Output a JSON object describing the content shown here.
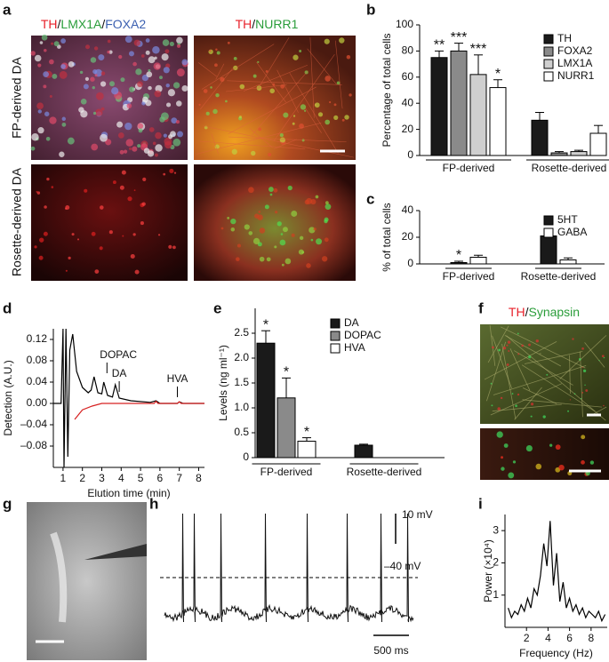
{
  "panel_labels": [
    "a",
    "b",
    "c",
    "d",
    "e",
    "f",
    "g",
    "h",
    "i"
  ],
  "panel_a": {
    "stain_1": [
      "TH",
      "/",
      "LMX1A",
      "/",
      "FOXA2"
    ],
    "stain_2": [
      "TH",
      "/",
      "NURR1"
    ],
    "rows": [
      "FP-derived DA",
      "Rosette-derived DA"
    ]
  },
  "panel_f": {
    "stain": [
      "TH",
      "/",
      "Synapsin"
    ]
  },
  "panel_h": {
    "scale_voltage": "10 mV",
    "threshold": "–40 mV",
    "scale_time": "500 ms"
  },
  "chart_data": [
    {
      "type": "bar",
      "y_label": "Percentage of total cells",
      "categories": [
        "FP-derived",
        "Rosette-derived"
      ],
      "ylim": [
        0,
        100
      ],
      "yticks": [
        0,
        20,
        40,
        60,
        80,
        100
      ],
      "legend": "upper right",
      "series": [
        {
          "name": "TH",
          "color": "#1a1a1a",
          "values": [
            75,
            27
          ],
          "errors": [
            5,
            6
          ],
          "stars": [
            "**",
            null
          ]
        },
        {
          "name": "FOXA2",
          "color": "#8a8a8a",
          "values": [
            80,
            2
          ],
          "errors": [
            6,
            1
          ],
          "stars": [
            "***",
            null
          ]
        },
        {
          "name": "LMX1A",
          "color": "#cfcfcf",
          "values": [
            62,
            3
          ],
          "errors": [
            15,
            1
          ],
          "stars": [
            "***",
            null
          ]
        },
        {
          "name": "NURR1",
          "color": "#ffffff",
          "values": [
            52,
            17
          ],
          "errors": [
            6,
            6
          ],
          "stars": [
            "*",
            null
          ]
        }
      ]
    },
    {
      "type": "bar",
      "y_label": "% of total cells",
      "categories": [
        "FP-derived",
        "Rosette-derived"
      ],
      "ylim": [
        0,
        40
      ],
      "yticks": [
        0,
        20,
        40
      ],
      "legend": "upper right",
      "series": [
        {
          "name": "5HT",
          "color": "#1a1a1a",
          "values": [
            1,
            21
          ],
          "errors": [
            1,
            1
          ],
          "stars": [
            "*",
            null
          ]
        },
        {
          "name": "GABA",
          "color": "#ffffff",
          "values": [
            5,
            3
          ],
          "errors": [
            1.5,
            1.5
          ],
          "stars": [
            null,
            null
          ]
        }
      ]
    },
    {
      "type": "line",
      "x_label": "Elution time (min)",
      "y_label": "Detection (A.U.)",
      "xlim": [
        0.5,
        8.3
      ],
      "ylim": [
        -0.12,
        0.14
      ],
      "xticks": [
        1,
        2,
        3,
        4,
        5,
        6,
        7,
        8
      ],
      "yticks": [
        {
          "value": -0.08,
          "label": "–0.08"
        },
        {
          "value": -0.04,
          "label": "–0.04"
        },
        {
          "value": 0,
          "label": "0.00"
        },
        0.04,
        0.08,
        0.12
      ],
      "annotations": [
        "DOPAC",
        "DA",
        "HVA"
      ],
      "series": [
        {
          "color": "#000000",
          "x": [
            0.5,
            0.9,
            1.0,
            1.05,
            1.15,
            1.25,
            1.35,
            1.5,
            1.7,
            2.0,
            2.3,
            2.45,
            2.6,
            2.8,
            3.0,
            3.1,
            3.3,
            3.55,
            3.7,
            3.9,
            4.5,
            5.5,
            5.8,
            6.0,
            6.9,
            7.0,
            7.2,
            8.3
          ],
          "values": [
            0,
            0,
            0.14,
            -0.12,
            0.14,
            -0.1,
            0.1,
            0.13,
            0.06,
            0.03,
            0.02,
            0.025,
            0.05,
            0.02,
            0.018,
            0.04,
            0.015,
            0.012,
            0.035,
            0.01,
            0.005,
            0.002,
            0.005,
            0,
            0,
            0.003,
            0,
            0
          ]
        },
        {
          "color": "#d62020",
          "x": [
            1.6,
            2.0,
            2.5,
            3.0,
            4.0,
            5.7,
            5.8,
            5.9,
            6.9,
            7.0,
            7.1,
            8.3
          ],
          "values": [
            -0.03,
            -0.012,
            -0.005,
            0,
            0,
            0,
            0.004,
            0,
            0,
            0.003,
            0,
            0
          ]
        }
      ]
    },
    {
      "type": "bar",
      "y_label": "Levels (ng ml⁻¹)",
      "categories": [
        "FP-derived",
        "Rosette-derived"
      ],
      "ylim": [
        0,
        3
      ],
      "yticks": [
        0,
        0.5,
        {
          "value": 1,
          "label": "1.0"
        },
        1.5,
        {
          "value": 2,
          "label": "2.0"
        },
        2.5
      ],
      "legend": "upper right",
      "series": [
        {
          "name": "DA",
          "color": "#1a1a1a",
          "values": [
            2.3,
            0.25
          ],
          "errors": [
            0.25,
            0.02
          ],
          "stars": [
            "*",
            null
          ]
        },
        {
          "name": "DOPAC",
          "color": "#8a8a8a",
          "values": [
            1.2,
            null
          ],
          "errors": [
            0.4,
            null
          ],
          "stars": [
            "*",
            null
          ]
        },
        {
          "name": "HVA",
          "color": "#ffffff",
          "values": [
            0.33,
            null
          ],
          "errors": [
            0.07,
            null
          ],
          "stars": [
            "*",
            null
          ]
        }
      ]
    },
    {
      "type": "line",
      "x_label": "Frequency (Hz)",
      "y_label": "Power (×10⁴)",
      "xlim": [
        0,
        9.5
      ],
      "ylim": [
        0,
        3.5
      ],
      "xticks": [
        2,
        4,
        6,
        8
      ],
      "yticks": [
        1,
        2,
        3
      ],
      "series": [
        {
          "color": "#000000",
          "x": [
            0.3,
            0.6,
            0.9,
            1.2,
            1.5,
            1.8,
            2.1,
            2.4,
            2.7,
            3.0,
            3.3,
            3.6,
            3.9,
            4.2,
            4.5,
            4.8,
            5.1,
            5.4,
            5.7,
            6.0,
            6.3,
            6.6,
            6.9,
            7.2,
            7.5,
            7.8,
            8.1,
            8.4,
            8.7,
            9.0,
            9.3
          ],
          "values": [
            0.6,
            0.3,
            0.5,
            0.4,
            0.7,
            0.5,
            0.9,
            0.6,
            1.2,
            1.0,
            1.6,
            2.6,
            1.9,
            3.3,
            1.3,
            2.3,
            0.8,
            1.4,
            0.6,
            0.9,
            0.5,
            0.7,
            0.4,
            0.6,
            0.3,
            0.5,
            0.4,
            0.3,
            0.5,
            0.2,
            0.4
          ]
        }
      ]
    }
  ]
}
